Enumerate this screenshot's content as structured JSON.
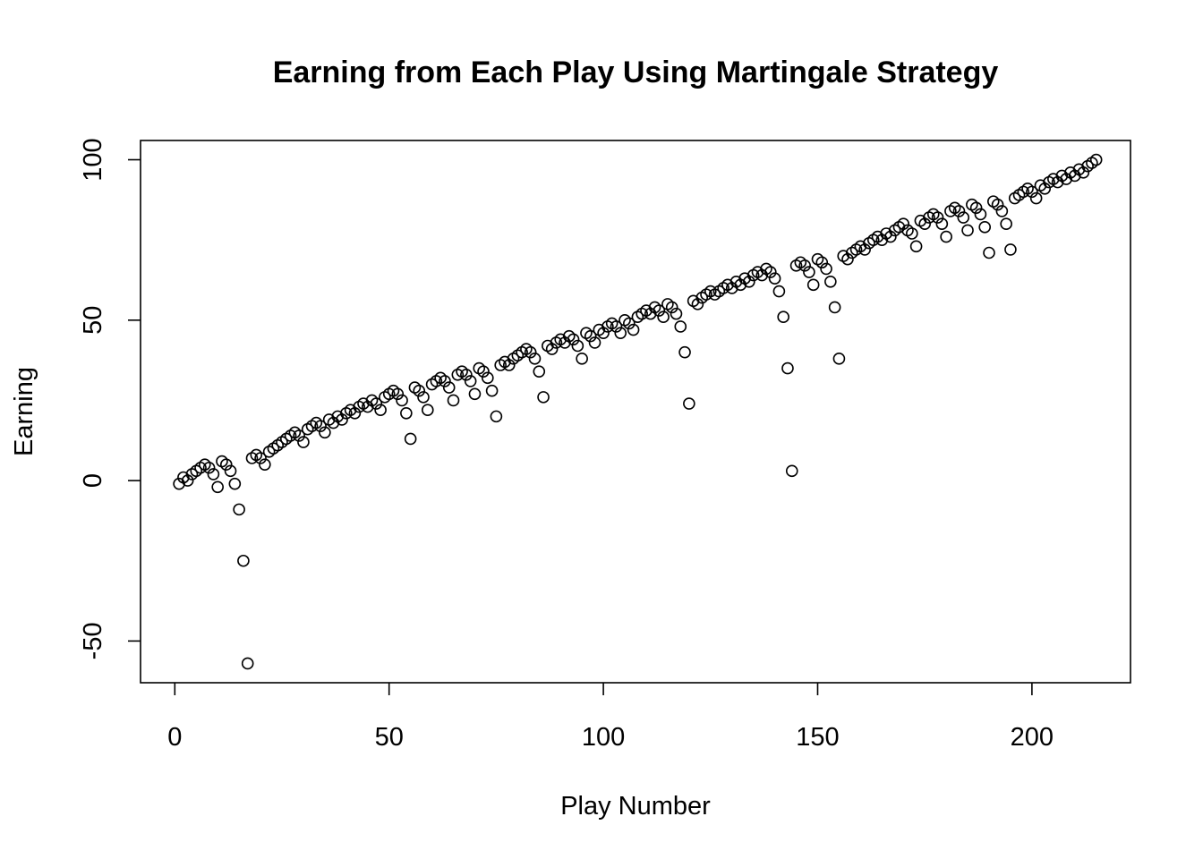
{
  "chart_data": {
    "type": "scatter",
    "title": "Earning from Each Play Using Martingale Strategy",
    "xlabel": "Play Number",
    "ylabel": "Earning",
    "xlim": [
      -8,
      223
    ],
    "ylim": [
      -63,
      106
    ],
    "xticks": [
      0,
      50,
      100,
      150,
      200
    ],
    "yticks": [
      -50,
      0,
      50,
      100
    ],
    "x": [
      1,
      2,
      3,
      4,
      5,
      6,
      7,
      8,
      9,
      10,
      11,
      12,
      13,
      14,
      15,
      16,
      17,
      18,
      19,
      20,
      21,
      22,
      23,
      24,
      25,
      26,
      27,
      28,
      29,
      30,
      31,
      32,
      33,
      34,
      35,
      36,
      37,
      38,
      39,
      40,
      41,
      42,
      43,
      44,
      45,
      46,
      47,
      48,
      49,
      50,
      51,
      52,
      53,
      54,
      55,
      56,
      57,
      58,
      59,
      60,
      61,
      62,
      63,
      64,
      65,
      66,
      67,
      68,
      69,
      70,
      71,
      72,
      73,
      74,
      75,
      76,
      77,
      78,
      79,
      80,
      81,
      82,
      83,
      84,
      85,
      86,
      87,
      88,
      89,
      90,
      91,
      92,
      93,
      94,
      95,
      96,
      97,
      98,
      99,
      100,
      101,
      102,
      103,
      104,
      105,
      106,
      107,
      108,
      109,
      110,
      111,
      112,
      113,
      114,
      115,
      116,
      117,
      118,
      119,
      120,
      121,
      122,
      123,
      124,
      125,
      126,
      127,
      128,
      129,
      130,
      131,
      132,
      133,
      134,
      135,
      136,
      137,
      138,
      139,
      140,
      141,
      142,
      143,
      144,
      145,
      146,
      147,
      148,
      149,
      150,
      151,
      152,
      153,
      154,
      155,
      156,
      157,
      158,
      159,
      160,
      161,
      162,
      163,
      164,
      165,
      166,
      167,
      168,
      169,
      170,
      171,
      172,
      173,
      174,
      175,
      176,
      177,
      178,
      179,
      180,
      181,
      182,
      183,
      184,
      185,
      186,
      187,
      188,
      189,
      190,
      191,
      192,
      193,
      194,
      195,
      196,
      197,
      198,
      199,
      200,
      201,
      202,
      203,
      204,
      205,
      206,
      207,
      208,
      209,
      210,
      211,
      212,
      213,
      214,
      215
    ],
    "y": [
      -1,
      1,
      0,
      2,
      3,
      4,
      5,
      4,
      2,
      -2,
      6,
      5,
      3,
      -1,
      -9,
      -25,
      -57,
      7,
      8,
      7,
      5,
      9,
      10,
      11,
      12,
      13,
      14,
      15,
      14,
      12,
      16,
      17,
      18,
      17,
      15,
      19,
      18,
      20,
      19,
      21,
      22,
      21,
      23,
      24,
      23,
      25,
      24,
      22,
      26,
      27,
      28,
      27,
      25,
      21,
      13,
      29,
      28,
      26,
      22,
      30,
      31,
      32,
      31,
      29,
      25,
      33,
      34,
      33,
      31,
      27,
      35,
      34,
      32,
      28,
      20,
      36,
      37,
      36,
      38,
      39,
      40,
      41,
      40,
      38,
      34,
      26,
      42,
      41,
      43,
      44,
      43,
      45,
      44,
      42,
      38,
      46,
      45,
      43,
      47,
      46,
      48,
      49,
      48,
      46,
      50,
      49,
      47,
      51,
      52,
      53,
      52,
      54,
      53,
      51,
      55,
      54,
      52,
      48,
      40,
      24,
      56,
      55,
      57,
      58,
      59,
      58,
      59,
      60,
      61,
      60,
      62,
      61,
      63,
      62,
      64,
      65,
      64,
      66,
      65,
      63,
      59,
      51,
      35,
      3,
      67,
      68,
      67,
      65,
      61,
      69,
      68,
      66,
      62,
      54,
      38,
      70,
      69,
      71,
      72,
      73,
      72,
      74,
      75,
      76,
      75,
      77,
      76,
      78,
      79,
      80,
      78,
      77,
      73,
      81,
      80,
      82,
      83,
      82,
      80,
      76,
      84,
      85,
      84,
      82,
      78,
      86,
      85,
      83,
      79,
      71,
      87,
      86,
      84,
      80,
      72,
      88,
      89,
      90,
      91,
      90,
      88,
      92,
      91,
      93,
      94,
      93,
      95,
      94,
      96,
      95,
      97,
      96,
      98,
      99,
      100
    ]
  }
}
